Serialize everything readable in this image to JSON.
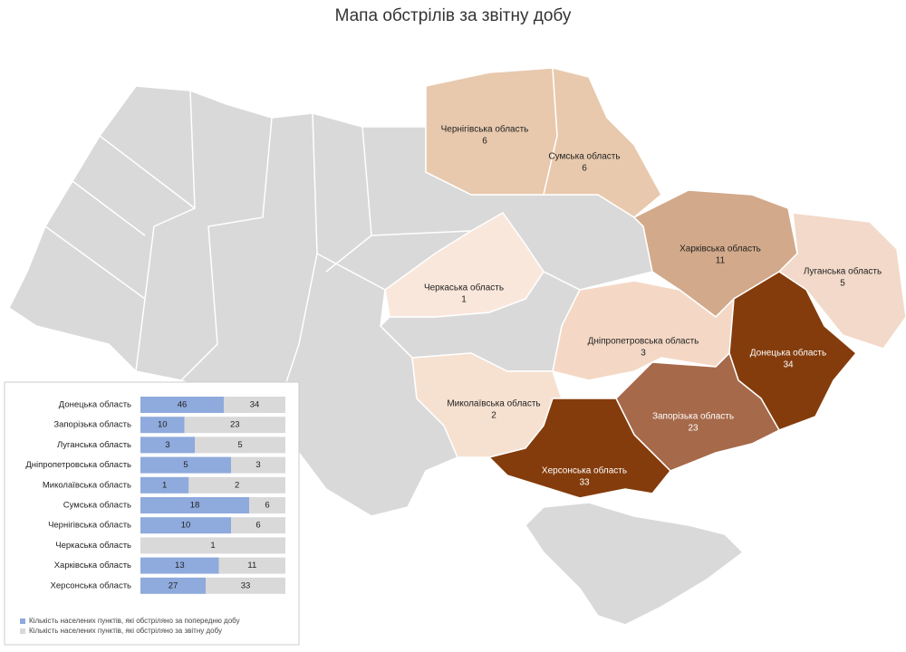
{
  "title": "Мапа обстрілів за звітну добу",
  "regions": [
    {
      "name": "Чернігівська область",
      "value": 6,
      "color": "#e8c9ad"
    },
    {
      "name": "Сумська область",
      "value": 6,
      "color": "#e8c9ad"
    },
    {
      "name": "Харківська область",
      "value": 11,
      "color": "#d2a98a"
    },
    {
      "name": "Луганська область",
      "value": 5,
      "color": "#f2d9c9"
    },
    {
      "name": "Черкаська область",
      "value": 1,
      "color": "#fae7db"
    },
    {
      "name": "Дніпропетровська область",
      "value": 3,
      "color": "#f4d8c5"
    },
    {
      "name": "Донецька область",
      "value": 34,
      "color": "#843c0c"
    },
    {
      "name": "Миколаївська область",
      "value": 2,
      "color": "#f6e1d1"
    },
    {
      "name": "Запорізька область",
      "value": 23,
      "color": "#a6694a"
    },
    {
      "name": "Херсонська область",
      "value": 33,
      "color": "#843c0c"
    }
  ],
  "chart_data": {
    "type": "bar",
    "stacked": "percent",
    "categories": [
      "Донецька область",
      "Запорізька область",
      "Луганська область",
      "Дніпропетровська область",
      "Миколаївська область",
      "Сумська область",
      "Чернігівська  область",
      "Черкаська область",
      "Харківська область",
      "Херсонська область"
    ],
    "series": [
      {
        "name": "Кількість населених пунктів, які обстріляно за попередню добу",
        "color": "#8faadc",
        "values": [
          46,
          10,
          3,
          5,
          1,
          18,
          10,
          null,
          13,
          27
        ]
      },
      {
        "name": "Кількість населених пунктів, які обстріляно за звітну добу",
        "color": "#d9d9d9",
        "values": [
          34,
          23,
          5,
          3,
          2,
          6,
          6,
          1,
          11,
          33
        ]
      }
    ]
  }
}
